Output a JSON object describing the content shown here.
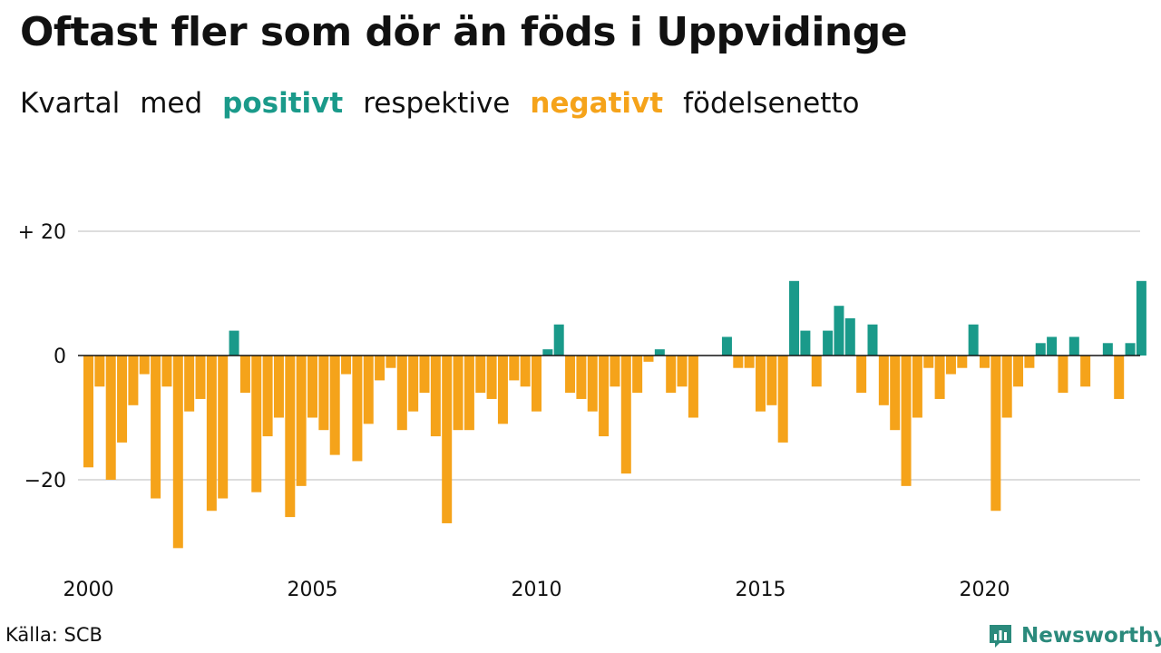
{
  "title": "Oftast fler som dör än föds i Uppvidinge",
  "subtitle": {
    "part1": "Kvartal",
    "part2": "med",
    "positive_word": "positivt",
    "part3": "respektive",
    "negative_word": "negativt",
    "part4": "födelsenetto"
  },
  "colors": {
    "positive": "#1a9a8a",
    "negative": "#f5a31a",
    "grid": "#dddddd",
    "zero_line": "#111111",
    "logo": "#2b8a7c"
  },
  "source": "Källa: SCB",
  "brand": {
    "name": "Newsworthy",
    "icon": "newsworthy-logo-icon"
  },
  "chart_data": {
    "type": "bar",
    "title": "Oftast fler som dör än föds i Uppvidinge",
    "subtitle": "Kvartal med positivt respektive negativt födelsenetto",
    "xlabel": "",
    "ylabel": "",
    "x_start": 2000,
    "periods_per_year": 4,
    "x_tick_labels": [
      "2000",
      "2005",
      "2010",
      "2015",
      "2020"
    ],
    "y_tick_labels": [
      "+ 20",
      "0",
      "−20"
    ],
    "y_ticks": [
      20,
      0,
      -20
    ],
    "ylim": [
      -32,
      21
    ],
    "grid": true,
    "legend": "none",
    "values": [
      -18,
      -5,
      -20,
      -14,
      -8,
      -3,
      -23,
      -5,
      -31,
      -9,
      -7,
      -25,
      -23,
      4,
      -6,
      -22,
      -13,
      -10,
      -26,
      -21,
      -10,
      -12,
      -16,
      -3,
      -17,
      -11,
      -4,
      -2,
      -12,
      -9,
      -6,
      -13,
      -27,
      -12,
      -12,
      -6,
      -7,
      -11,
      -4,
      -5,
      -9,
      1,
      5,
      -6,
      -7,
      -9,
      -13,
      -5,
      -19,
      -6,
      -1,
      1,
      -6,
      -5,
      -10,
      0,
      0,
      3,
      -2,
      -2,
      -9,
      -8,
      -14,
      12,
      4,
      -5,
      4,
      8,
      6,
      -6,
      5,
      -8,
      -12,
      -21,
      -10,
      -2,
      -7,
      -3,
      -2,
      5,
      -2,
      -25,
      -10,
      -5,
      -2,
      2,
      3,
      -6,
      3,
      -5,
      0,
      2,
      -7,
      2,
      12
    ]
  }
}
